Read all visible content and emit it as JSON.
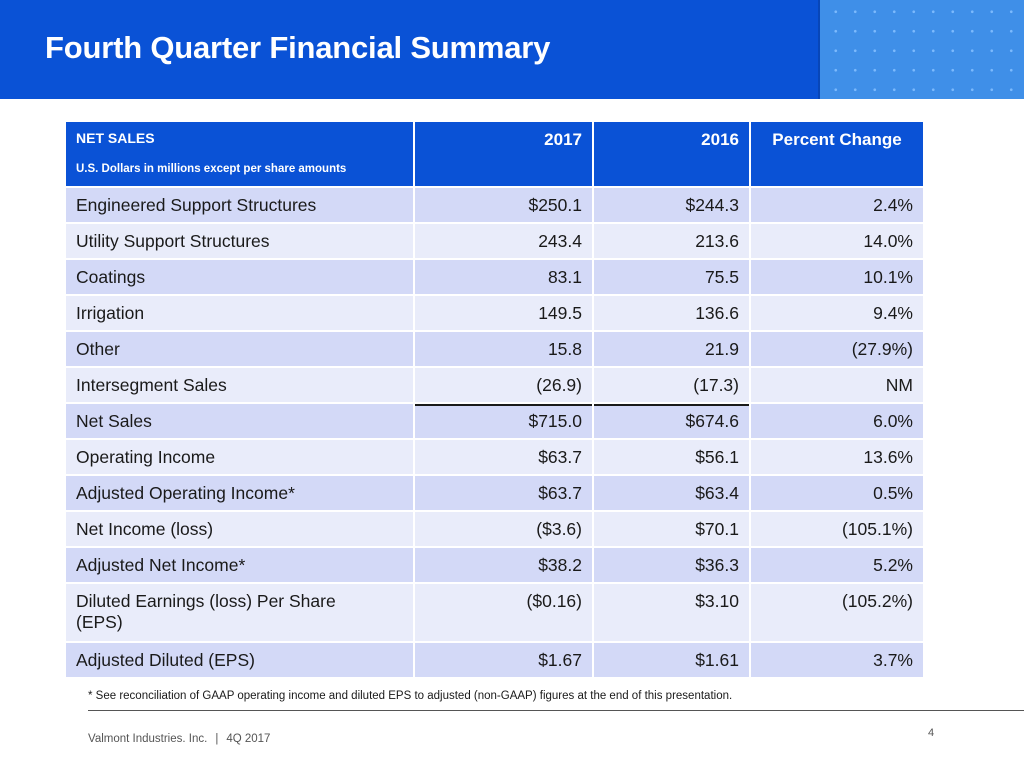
{
  "header": {
    "title": "Fourth Quarter Financial Summary"
  },
  "table": {
    "header": {
      "label_main": "NET SALES",
      "label_sub": "U.S. Dollars in millions except per share amounts",
      "col_2017": "2017",
      "col_2016": "2016",
      "col_pct": "Percent Change"
    },
    "rows": [
      {
        "label": "Engineered Support Structures",
        "v2017": "$250.1",
        "v2016": "$244.3",
        "pct": "2.4%"
      },
      {
        "label": "Utility Support Structures",
        "v2017": "243.4",
        "v2016": "213.6",
        "pct": "14.0%"
      },
      {
        "label": "Coatings",
        "v2017": "83.1",
        "v2016": "75.5",
        "pct": "10.1%"
      },
      {
        "label": "Irrigation",
        "v2017": "149.5",
        "v2016": "136.6",
        "pct": "9.4%"
      },
      {
        "label": "Other",
        "v2017": "15.8",
        "v2016": "21.9",
        "pct": "(27.9%)"
      },
      {
        "label": "Intersegment Sales",
        "v2017": "(26.9)",
        "v2016": "(17.3)",
        "pct": "NM"
      },
      {
        "label": "Net Sales",
        "v2017": "$715.0",
        "v2016": "$674.6",
        "pct": "6.0%"
      },
      {
        "label": "Operating Income",
        "v2017": "$63.7",
        "v2016": "$56.1",
        "pct": "13.6%"
      },
      {
        "label": "Adjusted Operating Income*",
        "v2017": "$63.7",
        "v2016": "$63.4",
        "pct": "0.5%"
      },
      {
        "label": "Net Income (loss)",
        "v2017": "($3.6)",
        "v2016": "$70.1",
        "pct": "(105.1%)"
      },
      {
        "label": "Adjusted Net Income*",
        "v2017": "$38.2",
        "v2016": "$36.3",
        "pct": "5.2%"
      },
      {
        "label_line1": "Diluted Earnings (loss) Per Share",
        "label_line2": "(EPS)",
        "v2017": "($0.16)",
        "v2016": "$3.10",
        "pct": "(105.2%)"
      },
      {
        "label": "Adjusted Diluted (EPS)",
        "v2017": "$1.67",
        "v2016": "$1.61",
        "pct": "3.7%"
      }
    ]
  },
  "footnote": "* See reconciliation of GAAP operating income and diluted EPS to adjusted (non-GAAP) figures at the end of this presentation.",
  "footer": {
    "company": "Valmont Industries. Inc.",
    "separator": "|",
    "period": "4Q 2017",
    "page_number": "4"
  },
  "colors": {
    "brand_blue": "#0a52d6",
    "row_dark": "#d3d9f7",
    "row_light": "#e9ecfa"
  }
}
